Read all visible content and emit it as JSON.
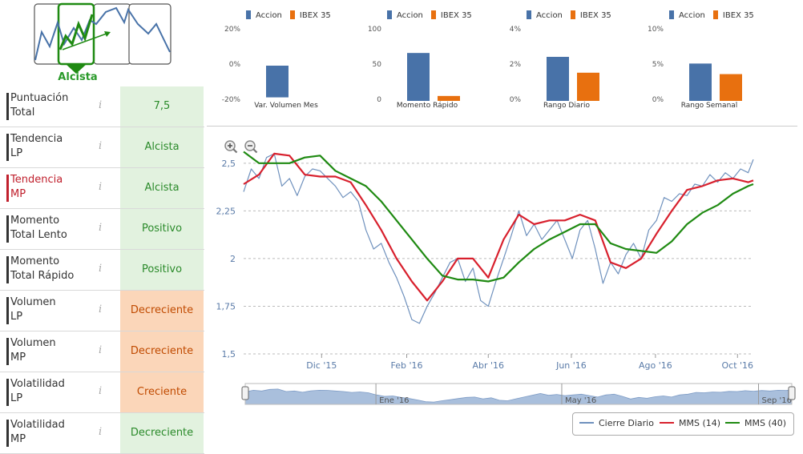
{
  "trend": {
    "label": "Alcista"
  },
  "metrics": [
    {
      "label_line1": "Puntuación",
      "label_line2": "Total",
      "value": "7,5",
      "tone": "green",
      "highlight": false
    },
    {
      "label_line1": "Tendencia",
      "label_line2": "LP",
      "value": "Alcista",
      "tone": "green",
      "highlight": false
    },
    {
      "label_line1": "Tendencia",
      "label_line2": "MP",
      "value": "Alcista",
      "tone": "green",
      "highlight": true
    },
    {
      "label_line1": "Momento",
      "label_line2": "Total Lento",
      "value": "Positivo",
      "tone": "green",
      "highlight": false
    },
    {
      "label_line1": "Momento",
      "label_line2": "Total Rápido",
      "value": "Positivo",
      "tone": "green",
      "highlight": false
    },
    {
      "label_line1": "Volumen",
      "label_line2": "LP",
      "value": "Decreciente",
      "tone": "orange",
      "highlight": false
    },
    {
      "label_line1": "Volumen",
      "label_line2": "MP",
      "value": "Decreciente",
      "tone": "orange",
      "highlight": false
    },
    {
      "label_line1": "Volatilidad",
      "label_line2": "LP",
      "value": "Creciente",
      "tone": "orange",
      "highlight": false
    },
    {
      "label_line1": "Volatilidad",
      "label_line2": "MP",
      "value": "Decreciente",
      "tone": "green",
      "highlight": false
    }
  ],
  "info_glyph": "i",
  "colors": {
    "accion": "#4872a8",
    "ibex": "#e8700f",
    "cierre": "#6f91bd",
    "mms14": "#d8202d",
    "mms40": "#1f8a12",
    "navigator": "#a9bfdc"
  },
  "chart_data": [
    {
      "type": "bar",
      "title": "Var. Volumen Mes",
      "series": [
        {
          "name": "Accion",
          "values": [
            -18
          ]
        },
        {
          "name": "IBEX 35",
          "values": [
            null
          ]
        }
      ],
      "yticks": [
        "20%",
        "0%",
        "-20%"
      ],
      "ylim": [
        -20,
        20
      ]
    },
    {
      "type": "bar",
      "title": "Momento Rápido",
      "series": [
        {
          "name": "Accion",
          "values": [
            68
          ]
        },
        {
          "name": "IBEX 35",
          "values": [
            7
          ]
        }
      ],
      "yticks": [
        "100",
        "50",
        "0"
      ],
      "ylim": [
        0,
        100
      ]
    },
    {
      "type": "bar",
      "title": "Rango Diario",
      "series": [
        {
          "name": "Accion",
          "values": [
            2.5
          ]
        },
        {
          "name": "IBEX 35",
          "values": [
            1.6
          ]
        }
      ],
      "yticks": [
        "4%",
        "2%",
        "0%"
      ],
      "ylim": [
        0,
        4
      ]
    },
    {
      "type": "bar",
      "title": "Rango Semanal",
      "series": [
        {
          "name": "Accion",
          "values": [
            5.3
          ]
        },
        {
          "name": "IBEX 35",
          "values": [
            3.8
          ]
        }
      ],
      "yticks": [
        "10%",
        "5%",
        "0%"
      ],
      "ylim": [
        0,
        10
      ]
    },
    {
      "type": "line",
      "title": "",
      "xlim": [
        0,
        100
      ],
      "ylim": [
        1.5,
        2.6
      ],
      "yticks": [
        "2,5",
        "2,25",
        "2",
        "1,75",
        "1,5"
      ],
      "ytick_values": [
        2.5,
        2.25,
        2,
        1.75,
        1.5
      ],
      "xticks": [
        "Dic '15",
        "Feb '16",
        "Abr '16",
        "Jun '16",
        "Ago '16",
        "Oct '16"
      ],
      "xtick_values": [
        15.3,
        32.0,
        48.0,
        64.3,
        80.8,
        96.9
      ],
      "navigator_labels": [
        "Ene '16",
        "May '16",
        "Sep '16"
      ],
      "navigator_label_values": [
        24.5,
        58.5,
        94.5
      ],
      "legend": [
        "Cierre Diario",
        "MMS (14)",
        "MMS (40)"
      ],
      "series": [
        {
          "name": "Cierre Diario",
          "x": [
            0,
            1.5,
            3,
            4.5,
            6,
            7.5,
            9,
            10.5,
            12,
            13.5,
            15,
            16.5,
            18,
            19.5,
            21,
            22.5,
            24,
            25.5,
            27,
            28.5,
            30,
            31.5,
            33,
            34.5,
            36,
            37.5,
            39,
            40.5,
            42,
            43.5,
            45,
            46.5,
            48,
            49.5,
            51,
            52.5,
            54,
            55.5,
            57,
            58.5,
            60,
            61.5,
            63,
            64.5,
            66,
            67.5,
            69,
            70.5,
            72,
            73.5,
            75,
            76.5,
            78,
            79.5,
            81,
            82.5,
            84,
            85.5,
            87,
            88.5,
            90,
            91.5,
            93,
            94.5,
            96,
            97.5,
            99,
            100
          ],
          "y": [
            2.35,
            2.47,
            2.42,
            2.53,
            2.55,
            2.38,
            2.42,
            2.33,
            2.43,
            2.47,
            2.46,
            2.42,
            2.38,
            2.32,
            2.35,
            2.3,
            2.15,
            2.05,
            2.08,
            1.98,
            1.9,
            1.8,
            1.68,
            1.66,
            1.75,
            1.82,
            1.9,
            1.98,
            2.0,
            1.88,
            1.95,
            1.78,
            1.75,
            1.88,
            2.0,
            2.12,
            2.25,
            2.12,
            2.18,
            2.1,
            2.15,
            2.2,
            2.1,
            2.0,
            2.15,
            2.2,
            2.05,
            1.87,
            1.98,
            1.92,
            2.02,
            2.08,
            2.0,
            2.15,
            2.2,
            2.32,
            2.3,
            2.34,
            2.33,
            2.39,
            2.38,
            2.44,
            2.4,
            2.45,
            2.42,
            2.47,
            2.45,
            2.52
          ]
        },
        {
          "name": "MMS (14)",
          "x": [
            0,
            3,
            6,
            9,
            12,
            15,
            18,
            21,
            24,
            27,
            30,
            33,
            36,
            39,
            42,
            45,
            48,
            51,
            54,
            57,
            60,
            63,
            66,
            69,
            72,
            75,
            78,
            81,
            84,
            87,
            90,
            93,
            96,
            99,
            100
          ],
          "y": [
            2.39,
            2.44,
            2.55,
            2.54,
            2.44,
            2.43,
            2.43,
            2.4,
            2.28,
            2.15,
            2.0,
            1.88,
            1.78,
            1.88,
            2.0,
            2.0,
            1.9,
            2.1,
            2.23,
            2.18,
            2.2,
            2.2,
            2.23,
            2.2,
            1.98,
            1.95,
            2.0,
            2.13,
            2.25,
            2.36,
            2.38,
            2.41,
            2.42,
            2.4,
            2.41
          ]
        },
        {
          "name": "MMS (40)",
          "x": [
            0,
            3,
            6,
            9,
            12,
            15,
            18,
            21,
            24,
            27,
            30,
            33,
            36,
            39,
            42,
            45,
            48,
            51,
            54,
            57,
            60,
            63,
            66,
            69,
            72,
            75,
            78,
            81,
            84,
            87,
            90,
            93,
            96,
            99,
            100
          ],
          "y": [
            2.56,
            2.5,
            2.5,
            2.5,
            2.53,
            2.54,
            2.46,
            2.42,
            2.38,
            2.3,
            2.2,
            2.1,
            2.0,
            1.91,
            1.89,
            1.89,
            1.88,
            1.9,
            1.98,
            2.05,
            2.1,
            2.14,
            2.18,
            2.18,
            2.08,
            2.05,
            2.04,
            2.03,
            2.09,
            2.18,
            2.24,
            2.28,
            2.34,
            2.38,
            2.39
          ]
        }
      ]
    }
  ],
  "mini_legend": {
    "accion": "Accion",
    "ibex": "IBEX 35"
  }
}
